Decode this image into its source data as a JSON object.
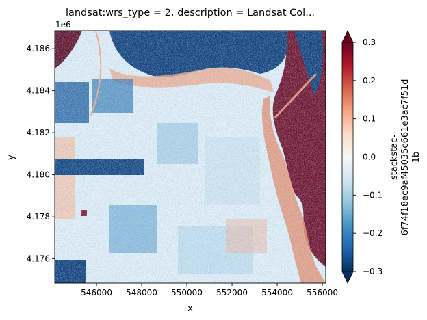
{
  "chart_data": {
    "type": "heatmap",
    "title": "landsat:wrs_type = 2, description = Landsat Col...",
    "xlabel": "x",
    "ylabel": "y",
    "y_offset_label": "1e6",
    "xlim": [
      544150,
      556150
    ],
    "ylim": [
      4.17485,
      4.18685
    ],
    "x_ticks": [
      546000,
      548000,
      550000,
      552000,
      554000,
      556000
    ],
    "x_tick_labels": [
      "546000",
      "548000",
      "550000",
      "552000",
      "554000",
      "556000"
    ],
    "y_ticks": [
      4.176,
      4.178,
      4.18,
      4.182,
      4.184,
      4.186
    ],
    "y_tick_labels": [
      "4.176",
      "4.178",
      "4.180",
      "4.182",
      "4.184",
      "4.186"
    ],
    "colorbar": {
      "colormap": "RdBu_r",
      "range": [
        -0.3,
        0.3
      ],
      "extend": "both",
      "ticks": [
        -0.3,
        -0.2,
        -0.1,
        0.0,
        0.1,
        0.2,
        0.3
      ],
      "tick_labels": [
        "−0.3",
        "−0.2",
        "−0.1",
        "0.0",
        "0.1",
        "0.2",
        "0.3"
      ],
      "label_lines": [
        "stackstac-",
        "6f74f18ec9af45035c661e3ac7f51d",
        "1b"
      ]
    },
    "colors": {
      "low": "#053061",
      "mid": "#f7f7f7",
      "high": "#67001f"
    },
    "grid": false
  }
}
